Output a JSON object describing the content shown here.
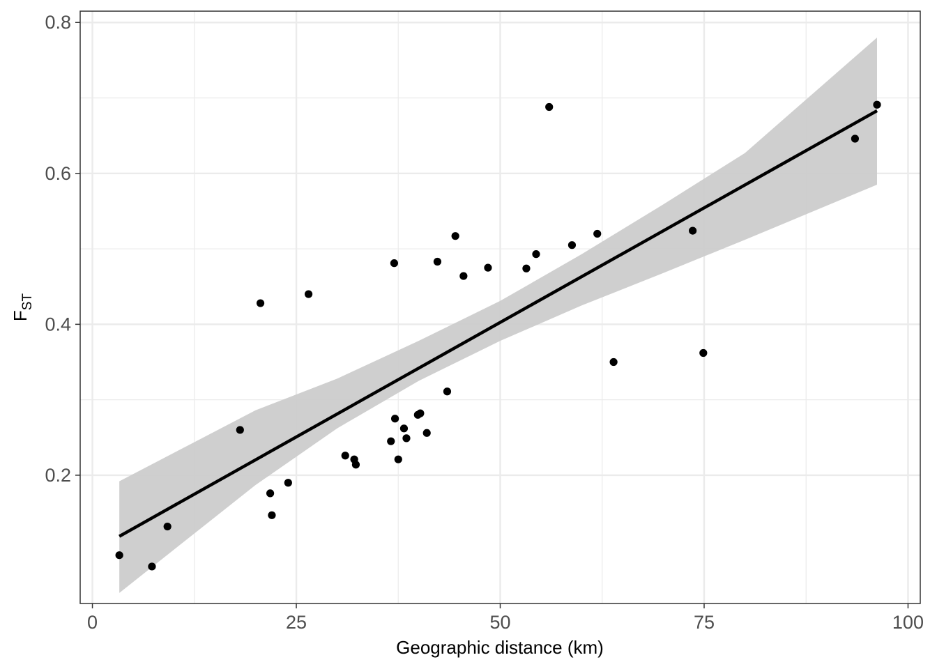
{
  "chart_data": {
    "type": "scatter",
    "xlabel": "Geographic distance (km)",
    "ylabel": "F",
    "ylabel_subscript": "ST",
    "xlim": [
      -1.5,
      101.5
    ],
    "ylim": [
      0.03,
      0.815
    ],
    "xticks": [
      0,
      25,
      50,
      75,
      100
    ],
    "xtick_labels": [
      "0",
      "25",
      "50",
      "75",
      "100"
    ],
    "yticks": [
      0.2,
      0.4,
      0.6,
      0.8
    ],
    "ytick_labels": [
      "0.2",
      "0.4",
      "0.6",
      "0.8"
    ],
    "grid": true,
    "series": [
      {
        "points": [
          {
            "x": 3.3,
            "y": 0.094
          },
          {
            "x": 7.3,
            "y": 0.079
          },
          {
            "x": 9.2,
            "y": 0.132
          },
          {
            "x": 18.1,
            "y": 0.26
          },
          {
            "x": 20.6,
            "y": 0.428
          },
          {
            "x": 21.8,
            "y": 0.176
          },
          {
            "x": 22.0,
            "y": 0.147
          },
          {
            "x": 24.0,
            "y": 0.19
          },
          {
            "x": 26.5,
            "y": 0.44
          },
          {
            "x": 31.0,
            "y": 0.226
          },
          {
            "x": 32.1,
            "y": 0.221
          },
          {
            "x": 32.3,
            "y": 0.214
          },
          {
            "x": 36.6,
            "y": 0.245
          },
          {
            "x": 37.0,
            "y": 0.481
          },
          {
            "x": 37.1,
            "y": 0.275
          },
          {
            "x": 37.5,
            "y": 0.221
          },
          {
            "x": 38.2,
            "y": 0.262
          },
          {
            "x": 38.5,
            "y": 0.249
          },
          {
            "x": 39.9,
            "y": 0.28
          },
          {
            "x": 40.2,
            "y": 0.282
          },
          {
            "x": 41.0,
            "y": 0.256
          },
          {
            "x": 42.3,
            "y": 0.483
          },
          {
            "x": 43.5,
            "y": 0.311
          },
          {
            "x": 44.5,
            "y": 0.517
          },
          {
            "x": 45.5,
            "y": 0.464
          },
          {
            "x": 48.5,
            "y": 0.475
          },
          {
            "x": 53.2,
            "y": 0.474
          },
          {
            "x": 54.4,
            "y": 0.493
          },
          {
            "x": 56.0,
            "y": 0.688
          },
          {
            "x": 58.8,
            "y": 0.505
          },
          {
            "x": 61.9,
            "y": 0.52
          },
          {
            "x": 63.9,
            "y": 0.35
          },
          {
            "x": 73.6,
            "y": 0.524
          },
          {
            "x": 74.9,
            "y": 0.362
          },
          {
            "x": 93.5,
            "y": 0.646
          },
          {
            "x": 96.2,
            "y": 0.691
          }
        ]
      }
    ],
    "fit_line": {
      "x": [
        3.3,
        96.2
      ],
      "y": [
        0.119,
        0.683
      ]
    },
    "confidence_band": {
      "x": [
        3.3,
        20,
        30,
        40,
        50,
        60,
        70,
        80,
        96.2
      ],
      "lower": [
        0.044,
        0.187,
        0.262,
        0.325,
        0.378,
        0.425,
        0.468,
        0.512,
        0.585
      ],
      "upper": [
        0.192,
        0.286,
        0.328,
        0.378,
        0.431,
        0.493,
        0.559,
        0.627,
        0.78
      ]
    },
    "colors": {
      "points": "#000000",
      "line": "#000000",
      "band": "#cccccc",
      "grid": "#ebebeb",
      "panel_border": "#333333",
      "tick_text": "#4d4d4d"
    }
  }
}
